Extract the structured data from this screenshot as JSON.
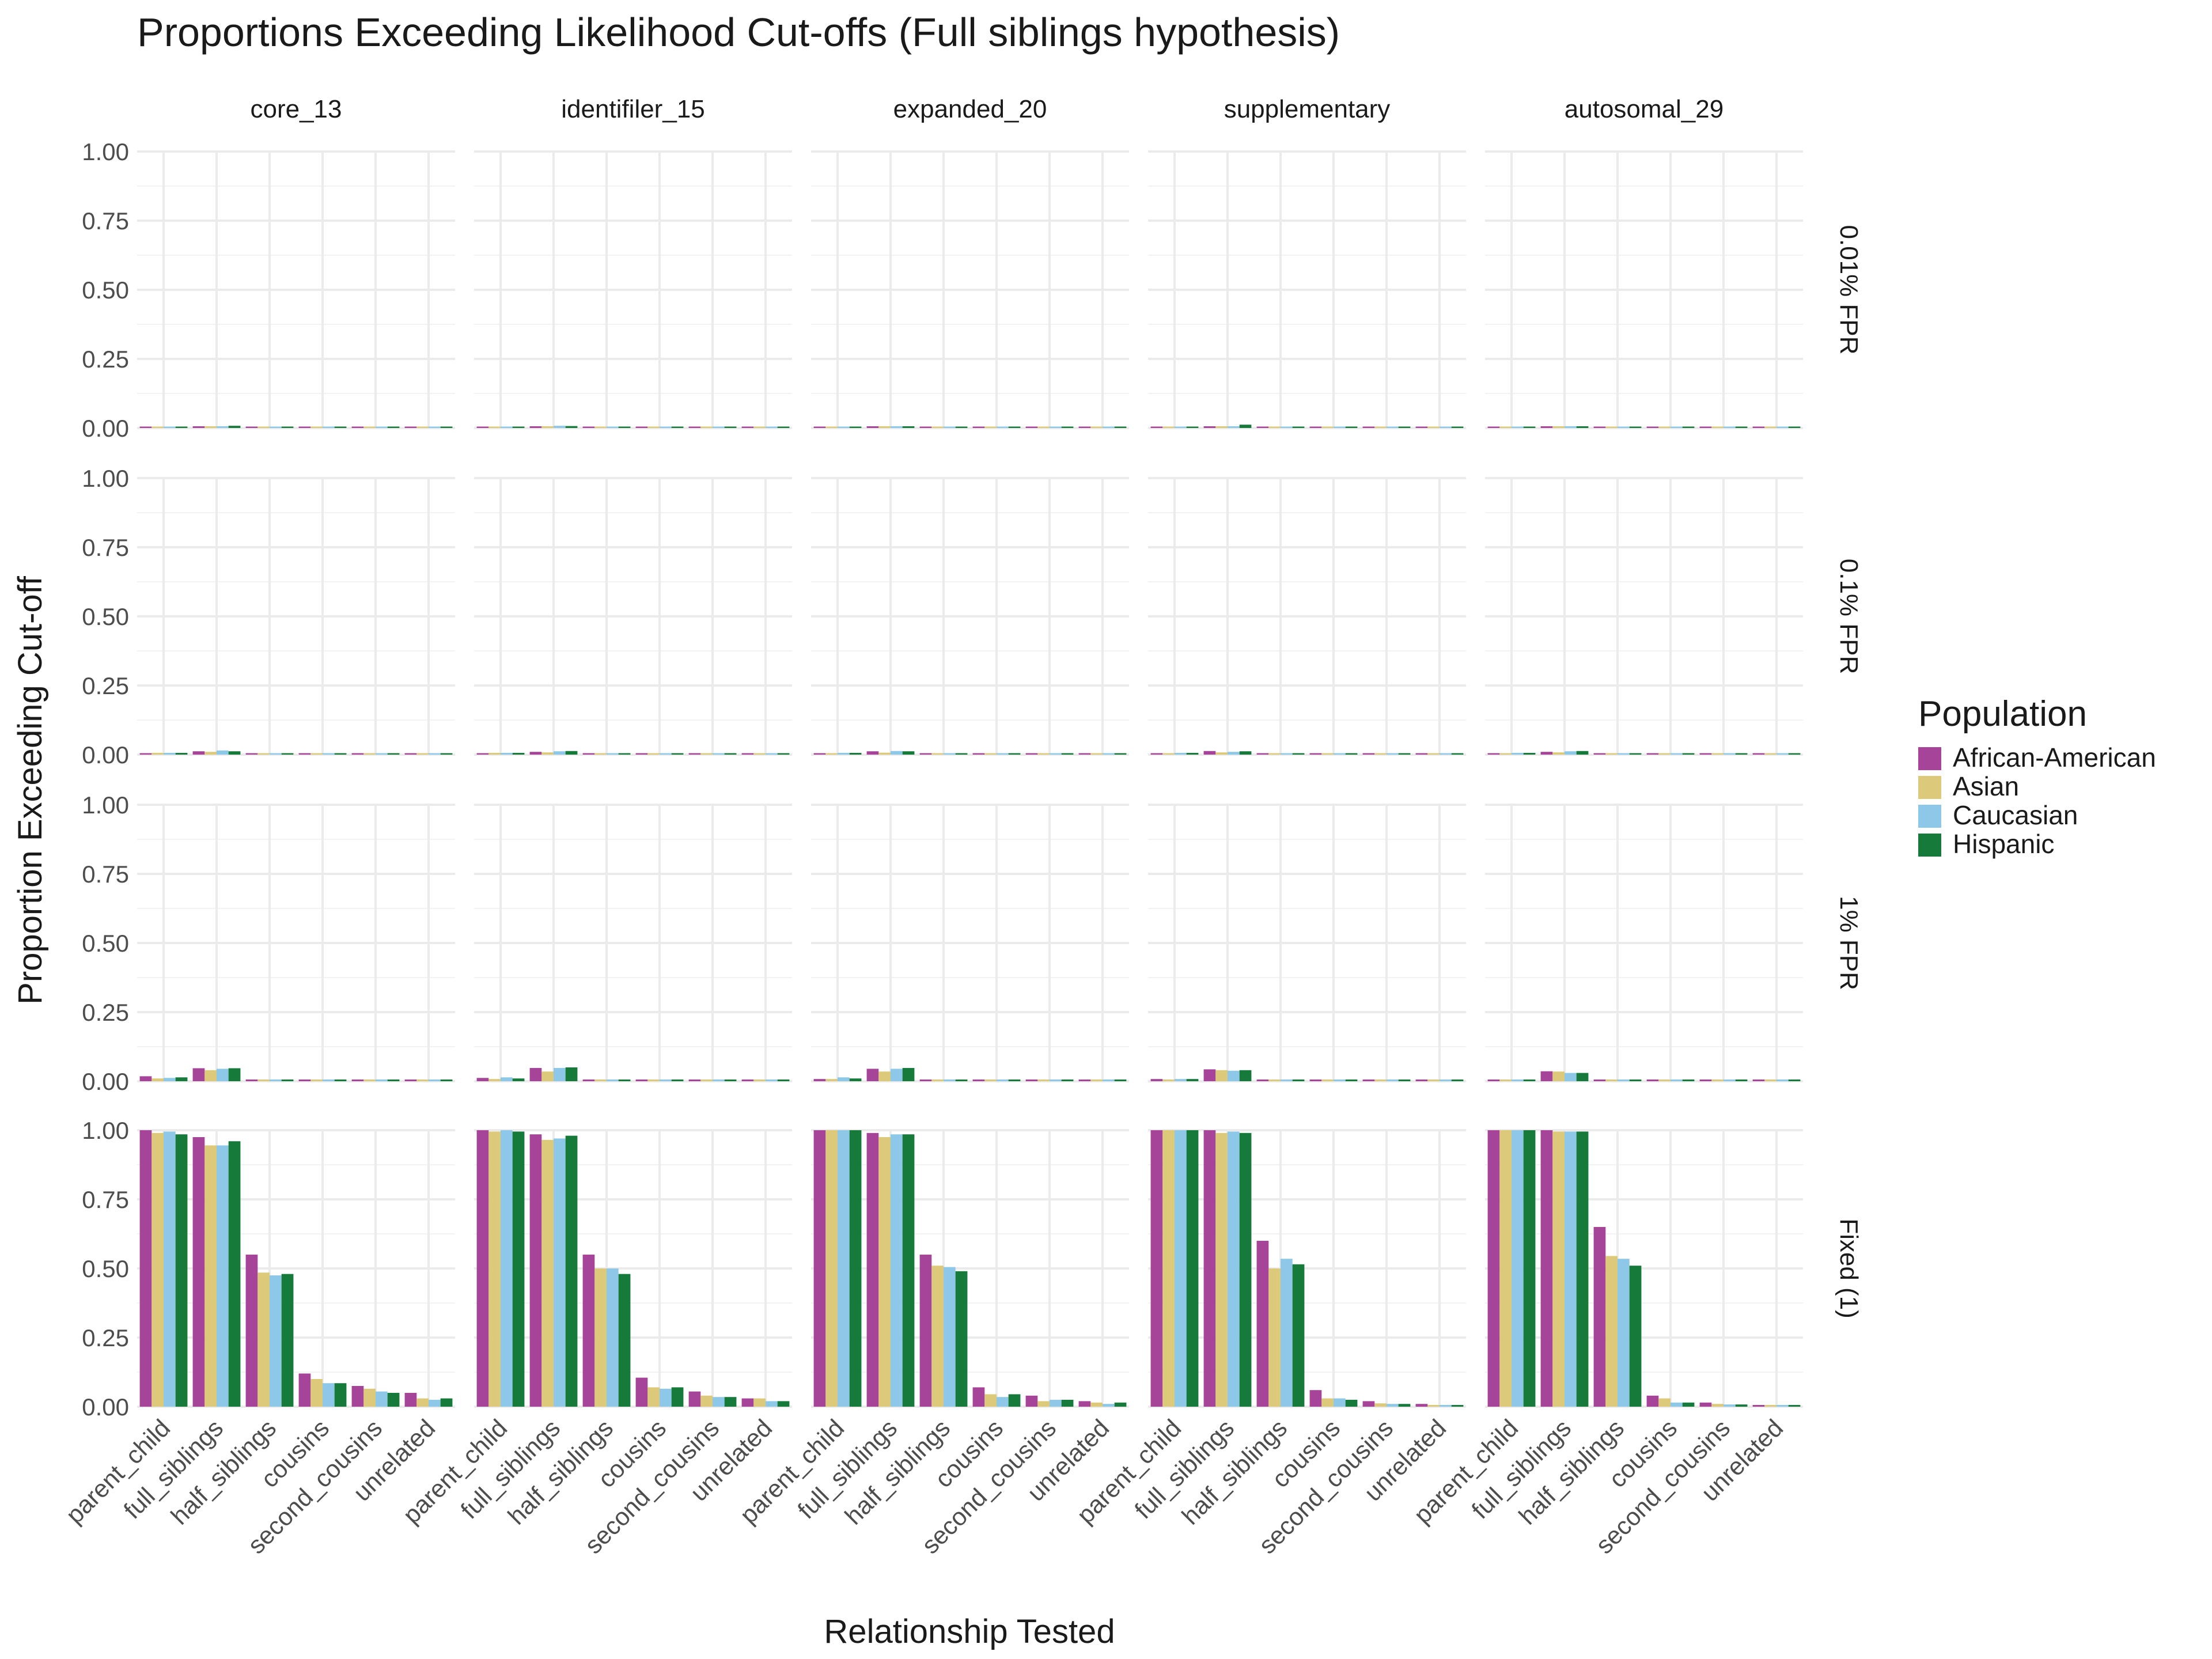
{
  "chart_data": {
    "type": "bar",
    "title": "Proportions Exceeding Likelihood Cut-offs (Full siblings hypothesis)",
    "xlabel": "Relationship Tested",
    "ylabel": "Proportion Exceeding Cut-off",
    "ylim": [
      0,
      1.0
    ],
    "yticks": [
      "0.00",
      "0.25",
      "0.50",
      "0.75",
      "1.00"
    ],
    "categories": [
      "parent_child",
      "full_siblings",
      "half_siblings",
      "cousins",
      "second_cousins",
      "unrelated"
    ],
    "panel_columns": [
      "core_13",
      "identifiler_15",
      "expanded_20",
      "supplementary",
      "autosomal_29"
    ],
    "panel_rows": [
      "0.01% FPR",
      "0.1% FPR",
      "1% FPR",
      "Fixed (1)"
    ],
    "legend": {
      "title": "Population",
      "position": "right",
      "entries": [
        {
          "name": "African-American",
          "color": "#A6449A"
        },
        {
          "name": "Asian",
          "color": "#DCC97A"
        },
        {
          "name": "Caucasian",
          "color": "#8DC8E8"
        },
        {
          "name": "Hispanic",
          "color": "#157A3A"
        }
      ]
    },
    "grid": true,
    "panels": {
      "0.01% FPR": {
        "core_13": [
          [
            0,
            0,
            0,
            0
          ],
          [
            0.002,
            0.002,
            0.003,
            0.008
          ],
          [
            0,
            0,
            0,
            0
          ],
          [
            0,
            0,
            0,
            0
          ],
          [
            0,
            0,
            0,
            0
          ],
          [
            0,
            0,
            0,
            0
          ]
        ],
        "identifiler_15": [
          [
            0,
            0,
            0,
            0
          ],
          [
            0.003,
            0.004,
            0.008,
            0.007
          ],
          [
            0,
            0,
            0,
            0
          ],
          [
            0,
            0,
            0,
            0
          ],
          [
            0,
            0,
            0,
            0
          ],
          [
            0,
            0,
            0,
            0
          ]
        ],
        "expanded_20": [
          [
            0,
            0,
            0,
            0
          ],
          [
            0.003,
            0.002,
            0.003,
            0.006
          ],
          [
            0,
            0,
            0,
            0
          ],
          [
            0,
            0,
            0,
            0
          ],
          [
            0,
            0,
            0,
            0
          ],
          [
            0,
            0,
            0,
            0
          ]
        ],
        "supplementary": [
          [
            0,
            0,
            0,
            0
          ],
          [
            0.004,
            0.003,
            0.003,
            0.012
          ],
          [
            0,
            0,
            0,
            0
          ],
          [
            0,
            0,
            0,
            0
          ],
          [
            0,
            0,
            0,
            0
          ],
          [
            0,
            0,
            0,
            0
          ]
        ],
        "autosomal_29": [
          [
            0,
            0,
            0,
            0
          ],
          [
            0.004,
            0.006,
            0.004,
            0.004
          ],
          [
            0,
            0,
            0,
            0
          ],
          [
            0,
            0,
            0,
            0
          ],
          [
            0,
            0,
            0,
            0
          ],
          [
            0,
            0,
            0,
            0
          ]
        ]
      },
      "0.1% FPR": {
        "core_13": [
          [
            0,
            0.002,
            0.003,
            0.002
          ],
          [
            0.012,
            0.01,
            0.015,
            0.012
          ],
          [
            0,
            0,
            0,
            0
          ],
          [
            0,
            0,
            0,
            0
          ],
          [
            0,
            0,
            0,
            0
          ],
          [
            0,
            0,
            0,
            0
          ]
        ],
        "identifiler_15": [
          [
            0,
            0.002,
            0.002,
            0.003
          ],
          [
            0.01,
            0.008,
            0.012,
            0.013
          ],
          [
            0,
            0,
            0,
            0
          ],
          [
            0,
            0,
            0,
            0
          ],
          [
            0,
            0,
            0,
            0
          ],
          [
            0,
            0,
            0,
            0
          ]
        ],
        "expanded_20": [
          [
            0,
            0,
            0.002,
            0.002
          ],
          [
            0.012,
            0.007,
            0.013,
            0.012
          ],
          [
            0,
            0,
            0,
            0
          ],
          [
            0,
            0,
            0,
            0
          ],
          [
            0,
            0,
            0,
            0
          ],
          [
            0,
            0,
            0,
            0
          ]
        ],
        "supplementary": [
          [
            0,
            0,
            0.002,
            0.002
          ],
          [
            0.013,
            0.008,
            0.01,
            0.012
          ],
          [
            0,
            0,
            0,
            0
          ],
          [
            0,
            0,
            0,
            0
          ],
          [
            0,
            0,
            0,
            0
          ],
          [
            0,
            0,
            0,
            0
          ]
        ],
        "autosomal_29": [
          [
            0,
            0,
            0.002,
            0.004
          ],
          [
            0.01,
            0.008,
            0.012,
            0.013
          ],
          [
            0,
            0,
            0,
            0
          ],
          [
            0,
            0,
            0,
            0
          ],
          [
            0,
            0,
            0,
            0
          ],
          [
            0,
            0,
            0,
            0
          ]
        ]
      },
      "1% FPR": {
        "core_13": [
          [
            0.018,
            0.01,
            0.012,
            0.014
          ],
          [
            0.047,
            0.04,
            0.045,
            0.047
          ],
          [
            0.003,
            0.002,
            0.002,
            0.002
          ],
          [
            0.002,
            0.002,
            0.002,
            0.002
          ],
          [
            0.002,
            0.002,
            0.002,
            0.002
          ],
          [
            0.002,
            0.002,
            0.002,
            0.002
          ]
        ],
        "identifiler_15": [
          [
            0.012,
            0.008,
            0.014,
            0.01
          ],
          [
            0.048,
            0.035,
            0.048,
            0.05
          ],
          [
            0.003,
            0.002,
            0.002,
            0.002
          ],
          [
            0.002,
            0.002,
            0.002,
            0.002
          ],
          [
            0.002,
            0.002,
            0.002,
            0.002
          ],
          [
            0.002,
            0.002,
            0.002,
            0.002
          ]
        ],
        "expanded_20": [
          [
            0.008,
            0.008,
            0.014,
            0.01
          ],
          [
            0.045,
            0.035,
            0.045,
            0.048
          ],
          [
            0.003,
            0.002,
            0.002,
            0.002
          ],
          [
            0.002,
            0.002,
            0.002,
            0.002
          ],
          [
            0.002,
            0.002,
            0.002,
            0.002
          ],
          [
            0.002,
            0.002,
            0.002,
            0.002
          ]
        ],
        "supplementary": [
          [
            0.008,
            0.006,
            0.008,
            0.008
          ],
          [
            0.043,
            0.04,
            0.038,
            0.04
          ],
          [
            0.003,
            0.002,
            0.002,
            0.002
          ],
          [
            0.002,
            0.002,
            0.002,
            0.002
          ],
          [
            0.002,
            0.002,
            0.002,
            0.002
          ],
          [
            0.002,
            0.002,
            0.002,
            0.002
          ]
        ],
        "autosomal_29": [
          [
            0.006,
            0.004,
            0.006,
            0.006
          ],
          [
            0.036,
            0.035,
            0.03,
            0.03
          ],
          [
            0.003,
            0.002,
            0.002,
            0.002
          ],
          [
            0.002,
            0.002,
            0.002,
            0.002
          ],
          [
            0.002,
            0.002,
            0.002,
            0.002
          ],
          [
            0.002,
            0.002,
            0.002,
            0.002
          ]
        ]
      },
      "Fixed (1)": {
        "core_13": [
          [
            1.0,
            0.99,
            0.995,
            0.985
          ],
          [
            0.975,
            0.945,
            0.945,
            0.96
          ],
          [
            0.55,
            0.485,
            0.475,
            0.48
          ],
          [
            0.12,
            0.1,
            0.085,
            0.085
          ],
          [
            0.075,
            0.065,
            0.055,
            0.05
          ],
          [
            0.05,
            0.03,
            0.025,
            0.03
          ]
        ],
        "identifiler_15": [
          [
            1.0,
            0.995,
            1.0,
            0.995
          ],
          [
            0.985,
            0.965,
            0.97,
            0.98
          ],
          [
            0.55,
            0.5,
            0.5,
            0.48
          ],
          [
            0.105,
            0.07,
            0.065,
            0.07
          ],
          [
            0.055,
            0.04,
            0.035,
            0.035
          ],
          [
            0.03,
            0.03,
            0.02,
            0.02
          ]
        ],
        "expanded_20": [
          [
            1.0,
            1.0,
            1.0,
            1.0
          ],
          [
            0.99,
            0.975,
            0.985,
            0.985
          ],
          [
            0.55,
            0.51,
            0.505,
            0.49
          ],
          [
            0.07,
            0.045,
            0.035,
            0.045
          ],
          [
            0.04,
            0.02,
            0.025,
            0.025
          ],
          [
            0.02,
            0.015,
            0.01,
            0.015
          ]
        ],
        "supplementary": [
          [
            1.0,
            1.0,
            1.0,
            1.0
          ],
          [
            1.0,
            0.99,
            0.995,
            0.99
          ],
          [
            0.6,
            0.5,
            0.535,
            0.515
          ],
          [
            0.06,
            0.03,
            0.03,
            0.025
          ],
          [
            0.02,
            0.012,
            0.01,
            0.01
          ],
          [
            0.01,
            0.005,
            0.005,
            0.005
          ]
        ],
        "autosomal_29": [
          [
            1.0,
            1.0,
            1.0,
            1.0
          ],
          [
            1.0,
            0.995,
            0.995,
            0.995
          ],
          [
            0.65,
            0.545,
            0.535,
            0.51
          ],
          [
            0.04,
            0.03,
            0.015,
            0.015
          ],
          [
            0.015,
            0.01,
            0.008,
            0.008
          ],
          [
            0.005,
            0.004,
            0.003,
            0.003
          ]
        ]
      }
    }
  }
}
